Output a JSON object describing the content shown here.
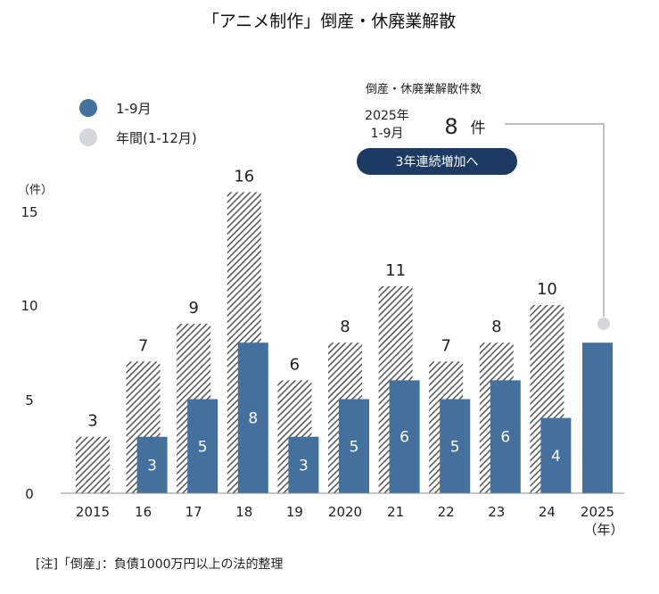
{
  "chart_data": {
    "type": "bar",
    "title": "「アニメ制作」倒産・休廃業解散",
    "ylabel": "（件）",
    "ylim": [
      0,
      16
    ],
    "yticks": [
      0,
      5,
      10,
      15
    ],
    "xlabel": "（年）",
    "categories": [
      "2015",
      "16",
      "17",
      "18",
      "19",
      "2020",
      "21",
      "22",
      "23",
      "24",
      "2025"
    ],
    "legend": {
      "placement": "top-left"
    },
    "grid": false,
    "series": [
      {
        "name": "1-9月",
        "style": "solid",
        "color": "#44709e",
        "values": [
          null,
          3,
          5,
          8,
          3,
          5,
          6,
          5,
          6,
          4,
          8
        ]
      },
      {
        "name": "年間(1-12月)",
        "style": "hatched",
        "color": "#555555",
        "values": [
          3,
          7,
          9,
          16,
          6,
          8,
          11,
          7,
          8,
          10,
          9
        ]
      }
    ]
  },
  "legend": {
    "items": [
      {
        "label": "1-9月",
        "color": "#44709e"
      },
      {
        "label": "年間(1-12月)",
        "color": "#d3d7db"
      }
    ]
  },
  "annotation": {
    "title": "倒産・休廃業解散件数",
    "year_line1": "2025年",
    "year_line2": "1-9月",
    "value": "8",
    "unit": "件",
    "badge": "3年連続増加へ",
    "badge_color": "#1d3a63"
  },
  "note": "[注]「倒産」：負債1000万円以上の法的整理",
  "colors": {
    "accent": "#44709e",
    "projection_marker": "#d3d7db",
    "connector": "#999999"
  }
}
